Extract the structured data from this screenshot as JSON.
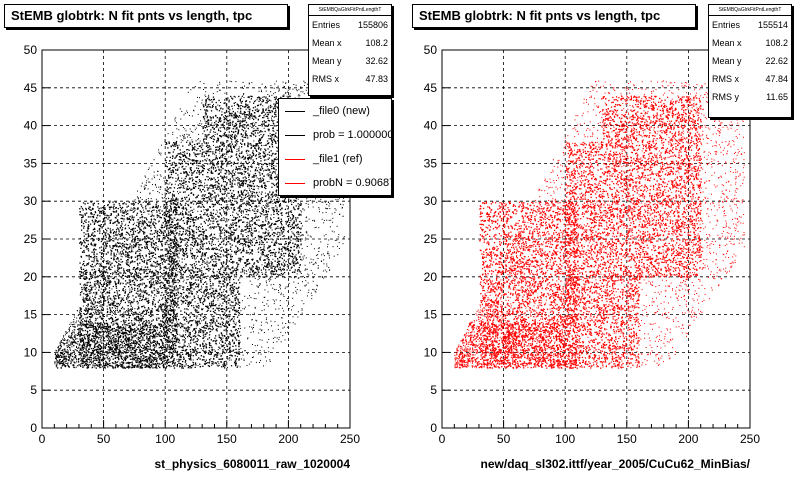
{
  "panels": [
    {
      "title": "StEMB globtrk: N fit pnts vs length, tpc",
      "xlabel": "st_physics_6080011_raw_1020004",
      "color": "#000000",
      "stats": {
        "header": "StEMBQaGlrkFitPntLengthT",
        "rows": [
          {
            "label": "Entries",
            "value": "155806"
          },
          {
            "label": "Mean x",
            "value": "108.2"
          },
          {
            "label": "Mean y",
            "value": "32.62"
          },
          {
            "label": "RMS x",
            "value": "47.83"
          }
        ]
      },
      "legend": [
        {
          "label": "_file0 (new)",
          "color": "#000000"
        },
        {
          "label": "prob = 1.000000",
          "color": "#000000"
        },
        {
          "label": "_file1 (ref)",
          "color": "#ff0000"
        },
        {
          "label": "probN = 0.906873",
          "color": "#ff0000"
        }
      ]
    },
    {
      "title": "StEMB globtrk: N fit pnts vs length, tpc",
      "xlabel": "new/daq_sl302.ittf/year_2005/CuCu62_MinBias/",
      "color": "#ff0000",
      "stats": {
        "header": "StEMBQaGlrkFitPntLengthT",
        "rows": [
          {
            "label": "Entries",
            "value": "155514"
          },
          {
            "label": "Mean x",
            "value": "108.2"
          },
          {
            "label": "Mean y",
            "value": "22.62"
          },
          {
            "label": "RMS x",
            "value": "47.84"
          },
          {
            "label": "RMS y",
            "value": "11.65"
          }
        ]
      }
    }
  ],
  "chart_data": [
    {
      "type": "scatter",
      "title": "StEMB globtrk: N fit pnts vs length, tpc",
      "xlabel": "st_physics_6080011_raw_1020004",
      "ylabel": "",
      "xlim": [
        0,
        250
      ],
      "ylim": [
        0,
        50
      ],
      "xticks": [
        0,
        50,
        100,
        150,
        200,
        250
      ],
      "yticks": [
        0,
        5,
        10,
        15,
        20,
        25,
        30,
        35,
        40,
        45,
        50
      ],
      "grid": true,
      "series": [
        {
          "name": "_file0 (new)",
          "color": "#000000",
          "dense_bands": [
            {
              "x": [
                12,
                22
              ],
              "y": [
                8,
                10
              ]
            },
            {
              "x": [
                22,
                100
              ],
              "y": [
                8,
                14
              ]
            },
            {
              "x": [
                30,
                110
              ],
              "y": [
                8,
                30
              ]
            },
            {
              "x": [
                100,
                130
              ],
              "y": [
                8,
                38
              ]
            },
            {
              "x": [
                130,
                160
              ],
              "y": [
                8,
                44
              ]
            },
            {
              "x": [
                160,
                210
              ],
              "y": [
                20,
                44
              ]
            }
          ],
          "x_range": [
            10,
            245
          ],
          "y_range": [
            8,
            46
          ]
        }
      ]
    },
    {
      "type": "scatter",
      "title": "StEMB globtrk: N fit pnts vs length, tpc",
      "xlabel": "new/daq_sl302.ittf/year_2005/CuCu62_MinBias/",
      "ylabel": "",
      "xlim": [
        0,
        250
      ],
      "ylim": [
        0,
        50
      ],
      "xticks": [
        0,
        50,
        100,
        150,
        200,
        250
      ],
      "yticks": [
        0,
        5,
        10,
        15,
        20,
        25,
        30,
        35,
        40,
        45,
        50
      ],
      "grid": true,
      "series": [
        {
          "name": "_file1 (ref)",
          "color": "#ff0000",
          "dense_bands": [
            {
              "x": [
                12,
                22
              ],
              "y": [
                8,
                10
              ]
            },
            {
              "x": [
                22,
                100
              ],
              "y": [
                8,
                14
              ]
            },
            {
              "x": [
                30,
                110
              ],
              "y": [
                8,
                30
              ]
            },
            {
              "x": [
                100,
                130
              ],
              "y": [
                8,
                38
              ]
            },
            {
              "x": [
                130,
                160
              ],
              "y": [
                8,
                44
              ]
            },
            {
              "x": [
                160,
                210
              ],
              "y": [
                20,
                44
              ]
            }
          ],
          "x_range": [
            10,
            245
          ],
          "y_range": [
            8,
            46
          ]
        }
      ]
    }
  ]
}
